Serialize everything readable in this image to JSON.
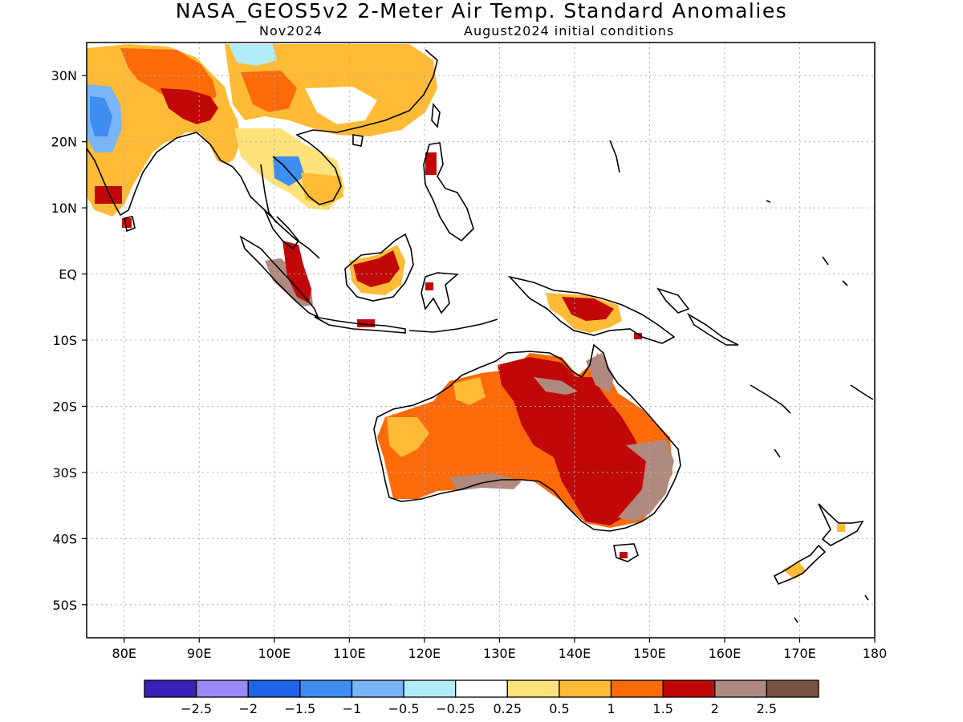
{
  "header": {
    "title": "NASA_GEOS5v2 2-Meter Air Temp. Standard Anomalies",
    "valid_month": "Nov2024",
    "init": "August2024 initial conditions"
  },
  "axes": {
    "lat_labels": [
      "30N",
      "20N",
      "10N",
      "EQ",
      "10S",
      "20S",
      "30S",
      "40S",
      "50S"
    ],
    "lon_labels": [
      "80E",
      "90E",
      "100E",
      "110E",
      "120E",
      "130E",
      "140E",
      "150E",
      "160E",
      "170E",
      "180"
    ],
    "lon_range": [
      75,
      180
    ],
    "lat_range": [
      -55,
      35
    ]
  },
  "colorbar": {
    "colors": [
      "#3a20b8",
      "#9b87f5",
      "#1f63e8",
      "#3d8ef0",
      "#78b4f6",
      "#b2ecf8",
      "#ffffff",
      "#ffe27a",
      "#ffbb35",
      "#fd6a0a",
      "#c00808",
      "#b08a80",
      "#7a5040"
    ],
    "tick_labels": [
      "-2.5",
      "-2",
      "-1.5",
      "-1",
      "-0.5",
      "-0.25",
      "0.25",
      "0.5",
      "1",
      "1.5",
      "2",
      "2.5"
    ]
  },
  "palette": {
    "coast": "#000000",
    "grid": "#b0b0b0"
  }
}
